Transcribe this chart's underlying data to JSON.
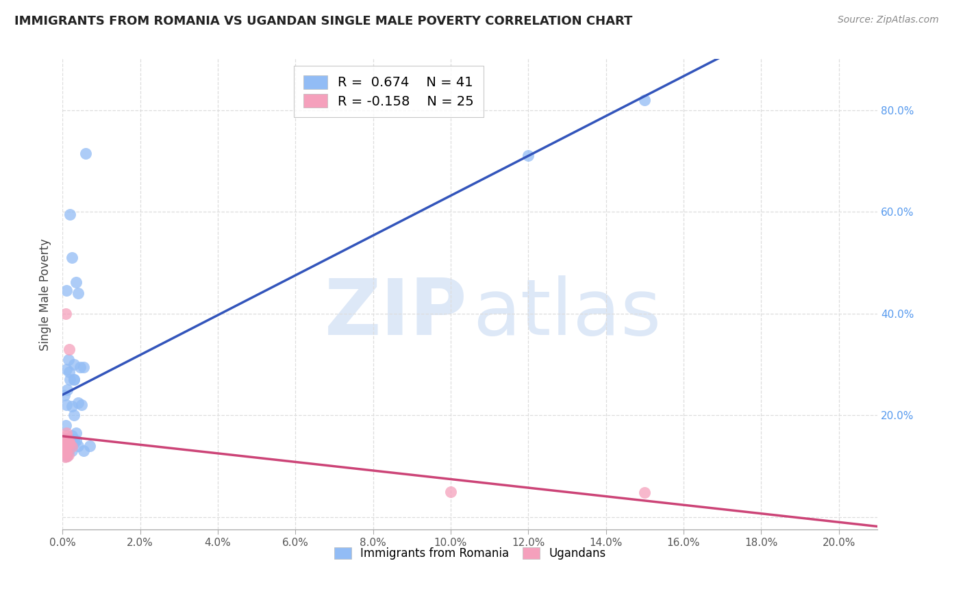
{
  "title": "IMMIGRANTS FROM ROMANIA VS UGANDAN SINGLE MALE POVERTY CORRELATION CHART",
  "source": "Source: ZipAtlas.com",
  "ylabel": "Single Male Poverty",
  "xlim": [
    0.0,
    0.21
  ],
  "ylim": [
    -0.025,
    0.9
  ],
  "romania_R": 0.674,
  "romania_N": 41,
  "uganda_R": -0.158,
  "uganda_N": 25,
  "romania_color": "#92bcf5",
  "uganda_color": "#f5a0bc",
  "romania_line_color": "#3355bb",
  "uganda_line_color": "#cc4477",
  "watermark_color": "#dde8f7",
  "background_color": "#ffffff",
  "grid_color": "#dddddd",
  "romania_scatter_x": [
    0.0005,
    0.001,
    0.0008,
    0.0012,
    0.0015,
    0.0008,
    0.002,
    0.001,
    0.0005,
    0.0015,
    0.0018,
    0.0025,
    0.001,
    0.003,
    0.0015,
    0.0035,
    0.002,
    0.004,
    0.0025,
    0.001,
    0.0045,
    0.003,
    0.0055,
    0.0035,
    0.006,
    0.004,
    0.005,
    0.0055,
    0.003,
    0.007,
    0.0015,
    0.0025,
    0.002,
    0.003,
    0.0025,
    0.0035,
    0.003,
    0.004,
    0.003,
    0.12,
    0.15
  ],
  "romania_scatter_y": [
    0.14,
    0.22,
    0.155,
    0.25,
    0.13,
    0.18,
    0.27,
    0.29,
    0.24,
    0.31,
    0.285,
    0.51,
    0.445,
    0.2,
    0.13,
    0.462,
    0.595,
    0.44,
    0.16,
    0.12,
    0.295,
    0.3,
    0.13,
    0.15,
    0.715,
    0.14,
    0.22,
    0.295,
    0.27,
    0.14,
    0.15,
    0.13,
    0.148,
    0.152,
    0.218,
    0.165,
    0.145,
    0.225,
    0.27,
    0.71,
    0.82
  ],
  "uganda_scatter_x": [
    0.0004,
    0.0008,
    0.0006,
    0.001,
    0.0012,
    0.0005,
    0.0015,
    0.0008,
    0.001,
    0.0006,
    0.0012,
    0.0018,
    0.0008,
    0.0015,
    0.001,
    0.0007,
    0.0005,
    0.0012,
    0.0014,
    0.0008,
    0.002,
    0.0018,
    0.0025,
    0.1,
    0.15
  ],
  "uganda_scatter_y": [
    0.138,
    0.13,
    0.148,
    0.16,
    0.12,
    0.132,
    0.148,
    0.4,
    0.165,
    0.118,
    0.142,
    0.33,
    0.128,
    0.122,
    0.148,
    0.138,
    0.128,
    0.152,
    0.142,
    0.128,
    0.142,
    0.148,
    0.138,
    0.05,
    0.048
  ],
  "legend_label_romania": "Immigrants from Romania",
  "legend_label_uganda": "Ugandans",
  "y_ticks": [
    0.0,
    0.2,
    0.4,
    0.6,
    0.8
  ],
  "y_tick_labels_right": [
    "",
    "20.0%",
    "40.0%",
    "60.0%",
    "80.0%"
  ],
  "x_tick_positions": [
    0.0,
    0.02,
    0.04,
    0.06,
    0.08,
    0.1,
    0.12,
    0.14,
    0.16,
    0.18,
    0.2
  ],
  "x_tick_labels": [
    "0.0%",
    "2.0%",
    "4.0%",
    "6.0%",
    "8.0%",
    "10.0%",
    "12.0%",
    "14.0%",
    "16.0%",
    "18.0%",
    "20.0%"
  ]
}
